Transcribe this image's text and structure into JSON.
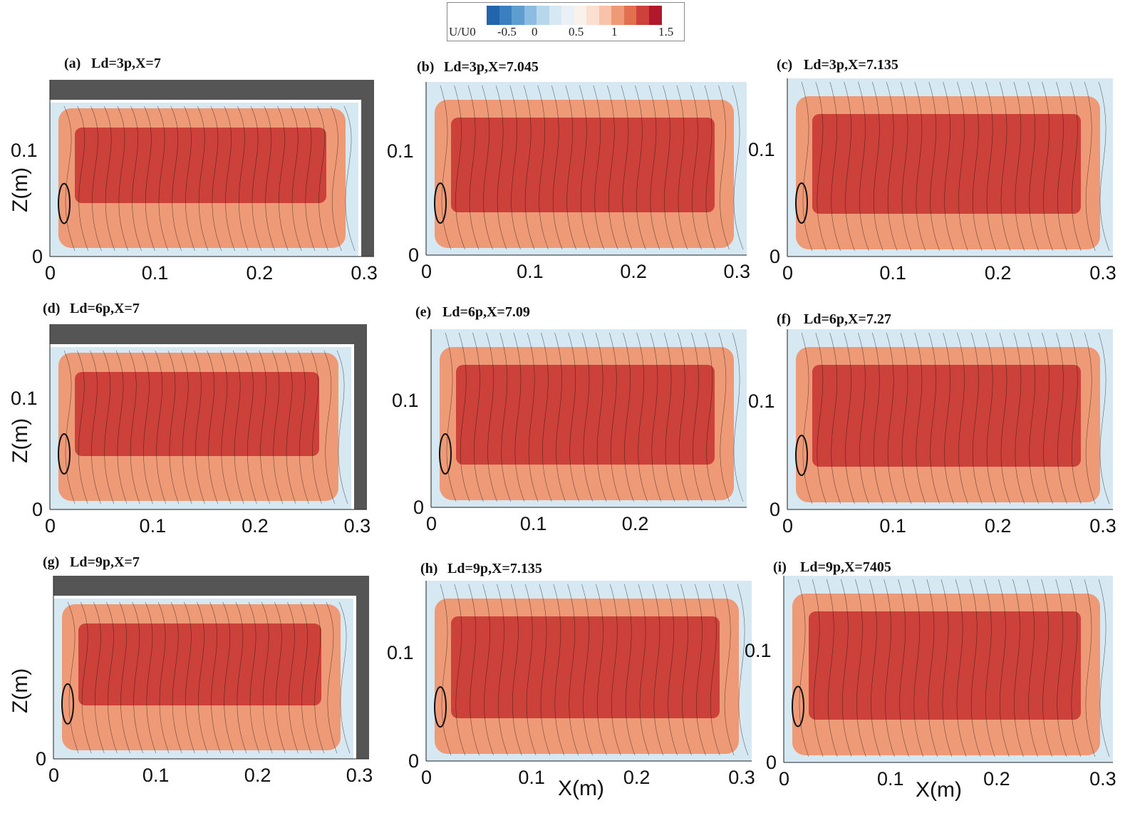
{
  "colorbar": {
    "label": "U/U0",
    "tick_labels": [
      "-0.5",
      "0",
      "0.5",
      "1",
      "1.5"
    ],
    "range": [
      -0.5,
      1.5
    ],
    "colors": [
      "#2166ac",
      "#3a7fc0",
      "#5e9dd0",
      "#8cbde0",
      "#b7d7ea",
      "#d6e8f2",
      "#eaf1f6",
      "#faf1ea",
      "#fbdfd0",
      "#f8c3a8",
      "#ef9a77",
      "#e2704f",
      "#cc4139",
      "#b2182b"
    ]
  },
  "chart_data": [
    {
      "type": "heatmap",
      "panel": "(a)",
      "title": "Ld=3p,X=7",
      "ylabel": "Z(m)",
      "xlabel": "",
      "xticks": [
        "0",
        "0.1",
        "0.2",
        "0.3"
      ],
      "yticks": [
        "0",
        "0.1"
      ],
      "wall": true
    },
    {
      "type": "heatmap",
      "panel": "(b)",
      "title": "Ld=3p,X=7.045",
      "ylabel": "",
      "xlabel": "",
      "xticks": [
        "0",
        "0.1",
        "0.2",
        "0.3"
      ],
      "yticks": [
        "0",
        "0.1"
      ],
      "wall": false
    },
    {
      "type": "heatmap",
      "panel": "(c)",
      "title": "Ld=3p,X=7.135",
      "ylabel": "",
      "xlabel": "",
      "xticks": [
        "0",
        "0.1",
        "0.2",
        "0.3"
      ],
      "yticks": [
        "0",
        "0.1"
      ],
      "wall": false
    },
    {
      "type": "heatmap",
      "panel": "(d)",
      "title": "Ld=6p,X=7",
      "ylabel": "Z(m)",
      "xlabel": "",
      "xticks": [
        "0",
        "0.1",
        "0.2",
        "0.3"
      ],
      "yticks": [
        "0",
        "0.1"
      ],
      "wall": true
    },
    {
      "type": "heatmap",
      "panel": "(e)",
      "title": "Ld=6p,X=7.09",
      "ylabel": "",
      "xlabel": "",
      "xticks": [
        "0",
        "0.1",
        "0.2"
      ],
      "yticks": [
        "0",
        "0.1"
      ],
      "wall": false
    },
    {
      "type": "heatmap",
      "panel": "(f)",
      "title": "Ld=6p,X=7.27",
      "ylabel": "",
      "xlabel": "",
      "xticks": [
        "0",
        "0.1",
        "0.2",
        "0.3"
      ],
      "yticks": [
        "0",
        "0.1"
      ],
      "wall": false
    },
    {
      "type": "heatmap",
      "panel": "(g)",
      "title": "Ld=9p,X=7",
      "ylabel": "Z(m)",
      "xlabel": "",
      "xticks": [
        "0",
        "0.1",
        "0.2",
        "0.3"
      ],
      "yticks": [
        "0"
      ],
      "wall": true
    },
    {
      "type": "heatmap",
      "panel": "(h)",
      "title": "Ld=9p,X=7.135",
      "ylabel": "",
      "xlabel": "X(m)",
      "xticks": [
        "0",
        "0.1",
        "0.2",
        "0.3"
      ],
      "yticks": [
        "0",
        "0.1"
      ],
      "wall": false
    },
    {
      "type": "heatmap",
      "panel": "(i)",
      "title": "Ld=9p,X=7405",
      "ylabel": "",
      "xlabel": "X(m)",
      "xticks": [
        "0",
        "0.1",
        "0.2",
        "0.3"
      ],
      "yticks": [
        "0",
        "0.1"
      ],
      "wall": false
    }
  ]
}
